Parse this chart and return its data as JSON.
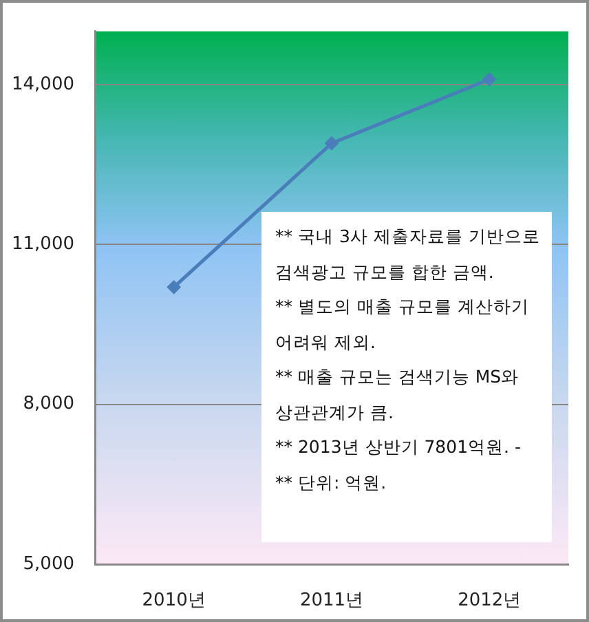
{
  "chart_data": {
    "type": "line",
    "categories": [
      "2010년",
      "2011년",
      "2012년"
    ],
    "series": [
      {
        "color": "#4a7ebb",
        "values": [
          10200,
          12900,
          14100
        ]
      }
    ],
    "ylim": [
      5000,
      15000
    ],
    "yticks": [
      {
        "value": 5000,
        "label": "5,000"
      },
      {
        "value": 8000,
        "label": "8,000"
      },
      {
        "value": 11000,
        "label": "11,000"
      },
      {
        "value": 14000,
        "label": "14,000"
      }
    ],
    "grid": "y",
    "marker": "diamond",
    "annotations": [
      "** 국내 3사 제출자료를 기반으로 검색광고 규모를 합한 금액.",
      "** 별도의 매출 규모를 계산하기 어려워 제외.",
      "** 매출 규모는 검색기능 MS와 상관관계가 큼.",
      "** 2013년 상반기 7801억원. -",
      "** 단위: 억원."
    ]
  }
}
